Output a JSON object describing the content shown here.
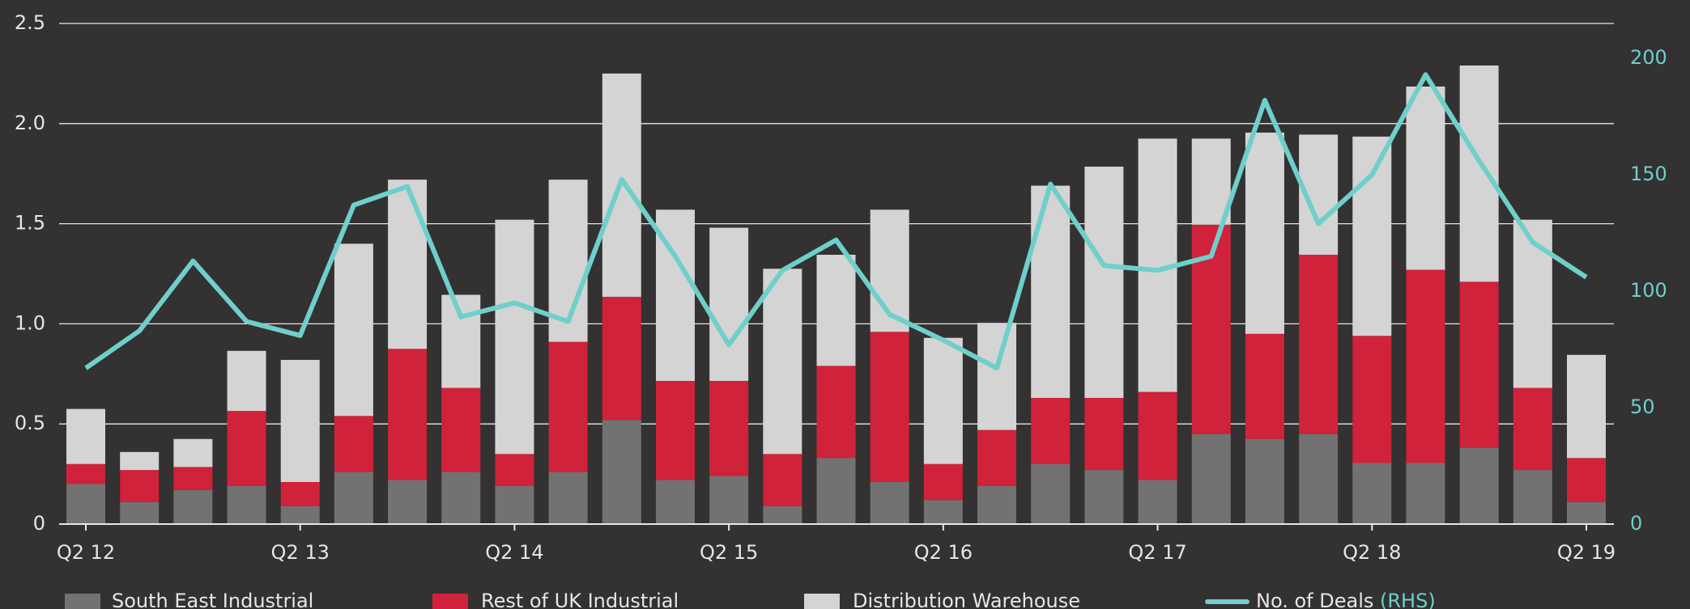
{
  "chart_data": {
    "type": "bar",
    "categories": [
      "Q2 12",
      null,
      null,
      null,
      "Q2 13",
      null,
      null,
      null,
      "Q2 14",
      null,
      null,
      null,
      "Q2 15",
      null,
      null,
      null,
      "Q2 16",
      null,
      null,
      null,
      "Q2 17",
      null,
      null,
      null,
      "Q2 18",
      null,
      null,
      null,
      "Q2 19"
    ],
    "series": [
      {
        "name": "South East Industrial",
        "color": "#727272",
        "values": [
          0.2,
          0.11,
          0.17,
          0.19,
          0.09,
          0.26,
          0.22,
          0.26,
          0.19,
          0.26,
          0.52,
          0.22,
          0.24,
          0.09,
          0.33,
          0.21,
          0.12,
          0.19,
          0.3,
          0.27,
          0.22,
          0.45,
          0.425,
          0.45,
          0.305,
          0.305,
          0.38,
          0.27,
          0.11
        ]
      },
      {
        "name": "Rest of UK Industrial",
        "color": "#d0223a",
        "values": [
          0.1,
          0.16,
          0.115,
          0.375,
          0.12,
          0.28,
          0.655,
          0.42,
          0.16,
          0.65,
          0.615,
          0.495,
          0.475,
          0.26,
          0.46,
          0.75,
          0.18,
          0.28,
          0.33,
          0.36,
          0.44,
          1.045,
          0.525,
          0.895,
          0.635,
          0.965,
          0.83,
          0.41,
          0.22
        ]
      },
      {
        "name": "Distribution Warehouse",
        "color": "#d4d4d4",
        "values": [
          0.275,
          0.09,
          0.14,
          0.3,
          0.61,
          0.86,
          0.845,
          0.465,
          1.17,
          0.81,
          1.115,
          0.855,
          0.765,
          0.925,
          0.555,
          0.61,
          0.63,
          0.535,
          1.06,
          1.155,
          1.265,
          0.43,
          1.005,
          0.6,
          0.995,
          0.915,
          1.08,
          0.84,
          0.515
        ]
      },
      {
        "name": "No. of Deals",
        "legend_suffix": "(RHS)",
        "type": "line",
        "axis": "y2",
        "color": "#6ecfcb",
        "values": [
          67,
          83,
          113,
          87,
          81,
          137,
          145,
          89,
          95,
          87,
          148,
          115,
          77,
          109,
          122,
          90,
          79,
          67,
          146,
          111,
          109,
          115,
          182,
          129,
          150,
          193,
          156,
          121,
          106
        ]
      }
    ],
    "ylim": [
      0,
      2.5
    ],
    "yticks": [
      0,
      {
        "value": 0.5,
        "label": "0.5"
      },
      {
        "value": 1,
        "label": "1.0"
      },
      {
        "value": 1.5,
        "label": "1.5"
      },
      {
        "value": 2,
        "label": "2.0"
      },
      {
        "value": 2.5,
        "label": "2.5"
      }
    ],
    "y2lim": [
      0,
      215
    ],
    "y2ticks": [
      0,
      50,
      100,
      150,
      200
    ],
    "grid": true,
    "legend": "bottom"
  }
}
